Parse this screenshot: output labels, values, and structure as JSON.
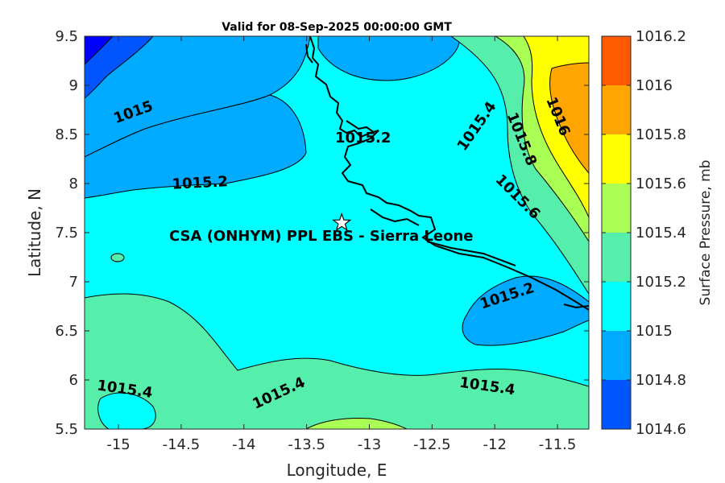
{
  "title": "Valid for 08-Sep-2025 00:00:00 GMT",
  "xlabel": "Longitude, E",
  "ylabel": "Latitude, N",
  "colorbar_label": "Surface Pressure, mb",
  "site_label": "CSA (ONHYM) PPL EBS  - Sierra Leone",
  "x_ticks": [
    "-15",
    "-14.5",
    "-14",
    "-13.5",
    "-13",
    "-12.5",
    "-12",
    "-11.5"
  ],
  "y_ticks": [
    "9.5",
    "9",
    "8.5",
    "8",
    "7.5",
    "7",
    "6.5",
    "6",
    "5.5"
  ],
  "colorbar": {
    "levels": [
      "1016.2",
      "1016",
      "1015.8",
      "1015.6",
      "1015.4",
      "1015.2",
      "1015",
      "1014.8",
      "1014.6"
    ],
    "colors": [
      "#ff5a00",
      "#ffa500",
      "#ffff00",
      "#aaff55",
      "#55eeaa",
      "#00ffff",
      "#00aaff",
      "#0055ff",
      "#0000ff"
    ]
  },
  "contour_labels": [
    {
      "text": "1015",
      "lon": -14.88,
      "lat": 8.72,
      "angle": -20
    },
    {
      "text": "1015.2",
      "lon": -14.35,
      "lat": 8.0,
      "angle": -3
    },
    {
      "text": "1015.2",
      "lon": -13.05,
      "lat": 8.46,
      "angle": 0
    },
    {
      "text": "1015.4",
      "lon": -12.14,
      "lat": 8.58,
      "angle": -55
    },
    {
      "text": "1015.8",
      "lon": -11.79,
      "lat": 8.45,
      "angle": 68
    },
    {
      "text": "1016",
      "lon": -11.5,
      "lat": 8.68,
      "angle": 68
    },
    {
      "text": "1015.6",
      "lon": -11.82,
      "lat": 7.86,
      "angle": 45
    },
    {
      "text": "1015.2",
      "lon": -11.9,
      "lat": 6.85,
      "angle": -18
    },
    {
      "text": "1015.4",
      "lon": -14.95,
      "lat": 5.9,
      "angle": 8
    },
    {
      "text": "1015.4",
      "lon": -13.72,
      "lat": 5.86,
      "angle": -25
    },
    {
      "text": "1015.4",
      "lon": -12.06,
      "lat": 5.93,
      "angle": 8
    }
  ],
  "site": {
    "lon": -13.22,
    "lat": 7.6
  }
}
